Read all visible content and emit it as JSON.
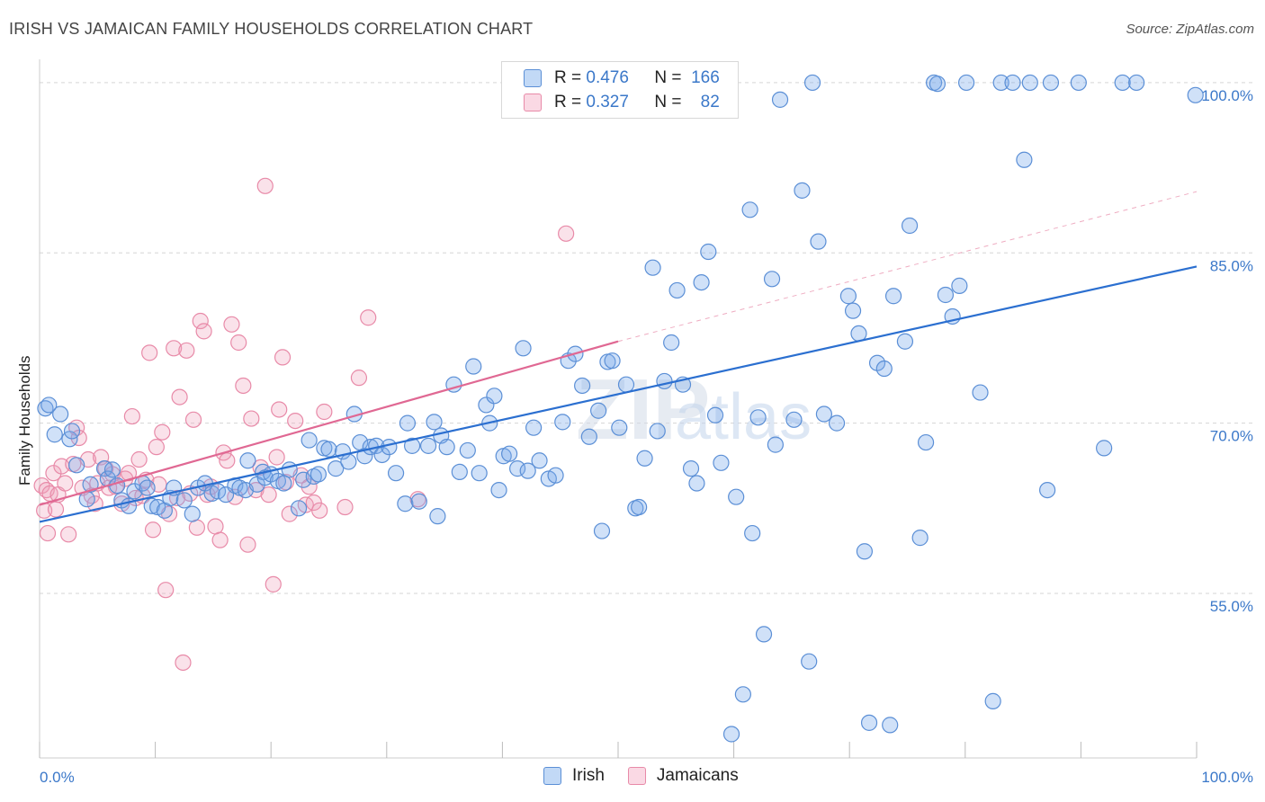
{
  "title": "IRISH VS JAMAICAN FAMILY HOUSEHOLDS CORRELATION CHART",
  "source": "Source: ZipAtlas.com",
  "watermark": "ZIPatlas",
  "colors": {
    "irish": "#5b8fd6",
    "irish_fill": "rgba(120,170,235,0.35)",
    "irish_line": "#2b6fd0",
    "jamaican": "#e88aa8",
    "jamaican_fill": "rgba(240,160,185,0.3)",
    "jamaican_line": "#e06893",
    "axis_text": "#3b78c9",
    "grid": "#d5d5d5"
  },
  "legend": {
    "irish": {
      "r_label": "R =",
      "r_value": "0.476",
      "n_label": "N =",
      "n_value": "166"
    },
    "jamaican": {
      "r_label": "R =",
      "r_value": "0.327",
      "n_label": "N =",
      "n_value": "82"
    }
  },
  "chart_data": {
    "type": "scatter",
    "title": "IRISH VS JAMAICAN FAMILY HOUSEHOLDS CORRELATION CHART",
    "xlabel": "",
    "ylabel": "Family Households",
    "xlim": [
      0,
      100
    ],
    "ylim": [
      40.5,
      101.5
    ],
    "x_tick_labels": [
      "0.0%",
      "100.0%"
    ],
    "y_ticks": [
      55,
      70,
      85,
      100
    ],
    "y_tick_labels": [
      "55.0%",
      "70.0%",
      "85.0%",
      "100.0%"
    ],
    "legend_entries": [
      "Irish",
      "Jamaicans"
    ],
    "series": [
      {
        "name": "Irish",
        "trend": {
          "x": [
            0,
            100
          ],
          "y": [
            61.3,
            83.8
          ],
          "style": "solid"
        },
        "points": [
          [
            0.5,
            71.3
          ],
          [
            0.8,
            71.6
          ],
          [
            1.3,
            69.0
          ],
          [
            1.8,
            70.8
          ],
          [
            2.6,
            68.6
          ],
          [
            2.8,
            69.3
          ],
          [
            3.2,
            66.3
          ],
          [
            4.1,
            63.3
          ],
          [
            4.4,
            64.6
          ],
          [
            5.6,
            66.0
          ],
          [
            5.9,
            65.1
          ],
          [
            6.3,
            65.9
          ],
          [
            6.7,
            64.5
          ],
          [
            7.1,
            63.2
          ],
          [
            7.7,
            62.7
          ],
          [
            8.2,
            64.0
          ],
          [
            8.9,
            64.7
          ],
          [
            9.3,
            64.3
          ],
          [
            9.7,
            62.7
          ],
          [
            10.2,
            62.6
          ],
          [
            10.8,
            62.3
          ],
          [
            11.3,
            63.4
          ],
          [
            11.6,
            64.3
          ],
          [
            12.5,
            63.2
          ],
          [
            13.2,
            62.0
          ],
          [
            13.7,
            64.3
          ],
          [
            14.3,
            64.7
          ],
          [
            14.9,
            63.8
          ],
          [
            15.4,
            64.0
          ],
          [
            16.1,
            63.7
          ],
          [
            16.9,
            64.5
          ],
          [
            17.3,
            64.3
          ],
          [
            17.8,
            64.1
          ],
          [
            18.0,
            66.7
          ],
          [
            18.8,
            64.6
          ],
          [
            19.3,
            65.7
          ],
          [
            19.5,
            65.2
          ],
          [
            20.0,
            65.5
          ],
          [
            20.6,
            64.9
          ],
          [
            21.1,
            64.7
          ],
          [
            21.6,
            65.9
          ],
          [
            22.4,
            62.5
          ],
          [
            22.8,
            65.0
          ],
          [
            23.3,
            68.5
          ],
          [
            23.7,
            65.3
          ],
          [
            24.1,
            65.5
          ],
          [
            24.6,
            67.8
          ],
          [
            25.0,
            67.7
          ],
          [
            25.6,
            66.0
          ],
          [
            26.2,
            67.5
          ],
          [
            26.7,
            66.6
          ],
          [
            27.2,
            70.8
          ],
          [
            27.7,
            68.3
          ],
          [
            28.1,
            67.1
          ],
          [
            28.6,
            67.9
          ],
          [
            29.1,
            68.0
          ],
          [
            29.6,
            67.2
          ],
          [
            30.2,
            67.9
          ],
          [
            30.8,
            65.6
          ],
          [
            31.6,
            62.9
          ],
          [
            31.8,
            70.0
          ],
          [
            32.2,
            68.0
          ],
          [
            32.8,
            63.1
          ],
          [
            33.6,
            68.0
          ],
          [
            34.1,
            70.1
          ],
          [
            34.4,
            61.8
          ],
          [
            34.7,
            68.9
          ],
          [
            35.2,
            67.9
          ],
          [
            35.8,
            73.4
          ],
          [
            36.3,
            65.7
          ],
          [
            37.0,
            67.6
          ],
          [
            37.5,
            75.0
          ],
          [
            38.0,
            65.6
          ],
          [
            38.6,
            71.6
          ],
          [
            38.9,
            70.0
          ],
          [
            39.3,
            72.4
          ],
          [
            39.7,
            64.1
          ],
          [
            40.1,
            67.1
          ],
          [
            40.6,
            67.3
          ],
          [
            41.3,
            66.0
          ],
          [
            41.8,
            76.6
          ],
          [
            42.2,
            65.8
          ],
          [
            42.7,
            69.6
          ],
          [
            43.2,
            66.7
          ],
          [
            44.0,
            65.1
          ],
          [
            44.6,
            65.4
          ],
          [
            45.2,
            70.1
          ],
          [
            45.7,
            75.5
          ],
          [
            46.3,
            76.1
          ],
          [
            46.9,
            73.3
          ],
          [
            47.5,
            68.8
          ],
          [
            48.3,
            71.1
          ],
          [
            48.6,
            60.5
          ],
          [
            49.1,
            75.4
          ],
          [
            49.5,
            75.5
          ],
          [
            50.1,
            69.6
          ],
          [
            50.7,
            73.4
          ],
          [
            51.5,
            62.5
          ],
          [
            51.8,
            62.6
          ],
          [
            52.3,
            66.9
          ],
          [
            53.0,
            83.7
          ],
          [
            53.4,
            69.3
          ],
          [
            54.0,
            73.7
          ],
          [
            54.6,
            77.1
          ],
          [
            55.1,
            81.7
          ],
          [
            55.6,
            73.4
          ],
          [
            56.3,
            66.0
          ],
          [
            56.8,
            64.7
          ],
          [
            57.2,
            82.4
          ],
          [
            57.8,
            85.1
          ],
          [
            58.4,
            70.7
          ],
          [
            58.9,
            66.5
          ],
          [
            59.8,
            42.6
          ],
          [
            60.2,
            63.5
          ],
          [
            60.8,
            46.1
          ],
          [
            61.4,
            88.8
          ],
          [
            61.6,
            60.3
          ],
          [
            62.1,
            70.5
          ],
          [
            62.6,
            51.4
          ],
          [
            63.3,
            82.7
          ],
          [
            63.6,
            68.1
          ],
          [
            64.0,
            98.5
          ],
          [
            65.2,
            70.3
          ],
          [
            65.9,
            90.5
          ],
          [
            66.5,
            49.0
          ],
          [
            66.8,
            100.0
          ],
          [
            67.3,
            86.0
          ],
          [
            67.8,
            70.8
          ],
          [
            68.9,
            70.0
          ],
          [
            69.9,
            81.2
          ],
          [
            70.3,
            79.9
          ],
          [
            70.8,
            77.9
          ],
          [
            71.3,
            58.7
          ],
          [
            71.7,
            43.6
          ],
          [
            72.4,
            75.3
          ],
          [
            73.0,
            74.8
          ],
          [
            73.5,
            43.4
          ],
          [
            73.8,
            81.2
          ],
          [
            74.8,
            77.2
          ],
          [
            75.2,
            87.4
          ],
          [
            76.1,
            59.9
          ],
          [
            76.6,
            68.3
          ],
          [
            77.3,
            100.0
          ],
          [
            77.6,
            99.9
          ],
          [
            78.3,
            81.3
          ],
          [
            78.9,
            79.4
          ],
          [
            79.5,
            82.1
          ],
          [
            80.1,
            100.0
          ],
          [
            81.3,
            72.7
          ],
          [
            82.4,
            45.5
          ],
          [
            83.1,
            100.0
          ],
          [
            84.1,
            100.0
          ],
          [
            85.1,
            93.2
          ],
          [
            85.6,
            100.0
          ],
          [
            87.1,
            64.1
          ],
          [
            87.4,
            100.0
          ],
          [
            89.8,
            100.0
          ],
          [
            92.0,
            67.8
          ],
          [
            93.6,
            100.0
          ],
          [
            94.8,
            100.0
          ],
          [
            99.9,
            98.9
          ]
        ]
      },
      {
        "name": "Jamaicans",
        "trend": {
          "x": [
            0,
            50
          ],
          "y": [
            62.8,
            77.2
          ],
          "style": "solid",
          "extension": {
            "x": [
              50,
              100
            ],
            "y": [
              77.2,
              90.4
            ],
            "style": "dashed"
          }
        },
        "points": [
          [
            0.2,
            64.5
          ],
          [
            0.4,
            62.3
          ],
          [
            0.6,
            64.1
          ],
          [
            0.7,
            60.3
          ],
          [
            0.9,
            63.8
          ],
          [
            1.2,
            65.6
          ],
          [
            1.4,
            62.4
          ],
          [
            1.6,
            63.7
          ],
          [
            1.9,
            66.2
          ],
          [
            2.2,
            64.7
          ],
          [
            2.5,
            60.2
          ],
          [
            2.9,
            66.4
          ],
          [
            3.2,
            69.6
          ],
          [
            3.4,
            68.7
          ],
          [
            3.7,
            64.3
          ],
          [
            4.2,
            66.8
          ],
          [
            4.5,
            63.6
          ],
          [
            4.8,
            62.9
          ],
          [
            5.0,
            64.7
          ],
          [
            5.3,
            67.0
          ],
          [
            5.7,
            66.0
          ],
          [
            6.0,
            64.3
          ],
          [
            6.3,
            65.5
          ],
          [
            6.6,
            64.4
          ],
          [
            7.1,
            62.9
          ],
          [
            7.4,
            65.1
          ],
          [
            7.7,
            65.6
          ],
          [
            8.0,
            70.6
          ],
          [
            8.3,
            63.4
          ],
          [
            8.6,
            66.8
          ],
          [
            8.9,
            63.6
          ],
          [
            9.2,
            65.0
          ],
          [
            9.5,
            76.2
          ],
          [
            9.8,
            60.6
          ],
          [
            10.1,
            67.9
          ],
          [
            10.3,
            64.6
          ],
          [
            10.6,
            69.2
          ],
          [
            10.9,
            55.3
          ],
          [
            11.2,
            62.0
          ],
          [
            11.6,
            76.6
          ],
          [
            11.9,
            63.4
          ],
          [
            12.1,
            72.3
          ],
          [
            12.4,
            48.9
          ],
          [
            12.7,
            76.4
          ],
          [
            13.0,
            63.8
          ],
          [
            13.3,
            70.3
          ],
          [
            13.6,
            60.8
          ],
          [
            13.9,
            79.0
          ],
          [
            14.2,
            78.1
          ],
          [
            14.5,
            63.7
          ],
          [
            14.8,
            64.4
          ],
          [
            15.2,
            60.9
          ],
          [
            15.6,
            59.7
          ],
          [
            15.9,
            67.4
          ],
          [
            16.2,
            66.7
          ],
          [
            16.6,
            78.7
          ],
          [
            16.9,
            63.5
          ],
          [
            17.2,
            77.1
          ],
          [
            17.6,
            73.3
          ],
          [
            18.0,
            59.3
          ],
          [
            18.3,
            70.4
          ],
          [
            18.7,
            64.1
          ],
          [
            19.1,
            66.1
          ],
          [
            19.5,
            90.9
          ],
          [
            19.8,
            63.7
          ],
          [
            20.2,
            55.8
          ],
          [
            20.5,
            67.0
          ],
          [
            20.7,
            71.2
          ],
          [
            21.0,
            75.8
          ],
          [
            21.3,
            64.8
          ],
          [
            21.6,
            62.0
          ],
          [
            22.1,
            70.2
          ],
          [
            22.6,
            65.4
          ],
          [
            23.0,
            62.8
          ],
          [
            23.3,
            64.4
          ],
          [
            23.7,
            63.0
          ],
          [
            24.2,
            62.3
          ],
          [
            24.6,
            71.0
          ],
          [
            26.4,
            62.6
          ],
          [
            27.6,
            74.0
          ],
          [
            28.4,
            79.3
          ],
          [
            32.7,
            63.3
          ],
          [
            45.5,
            86.7
          ]
        ]
      }
    ]
  },
  "x_labels": {
    "left": "0.0%",
    "right": "100.0%"
  },
  "bottom_legend": {
    "irish_label": "Irish",
    "jamaican_label": "Jamaicans"
  }
}
